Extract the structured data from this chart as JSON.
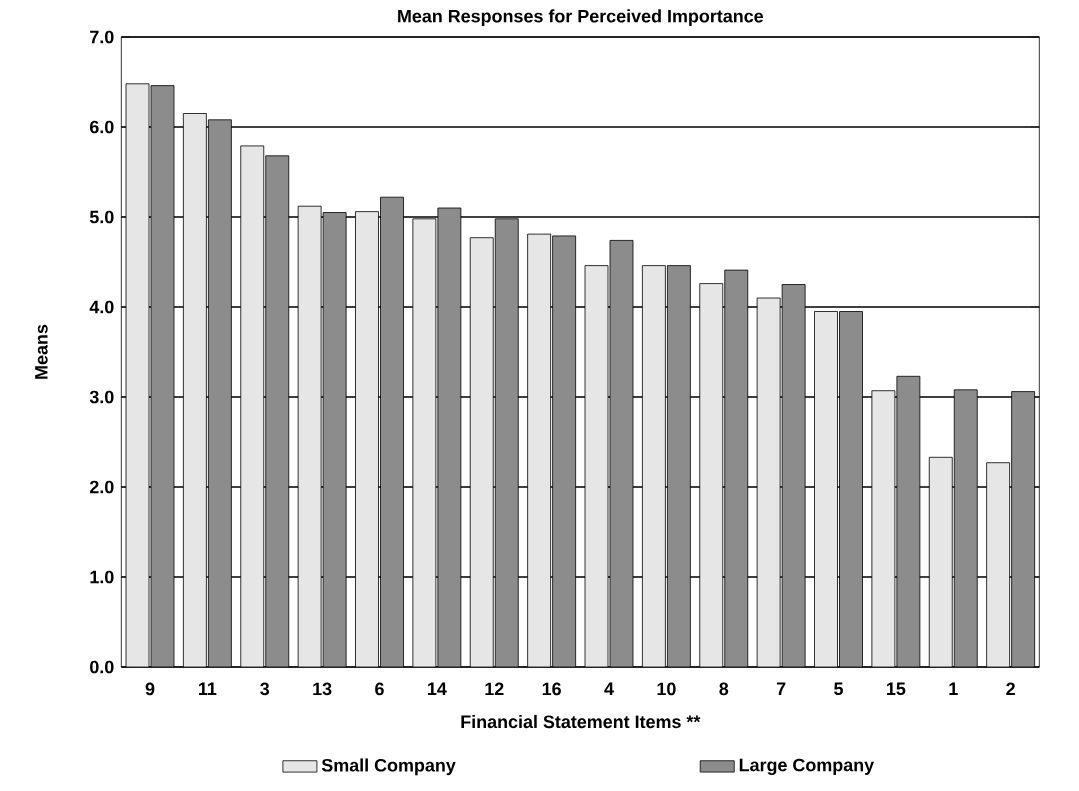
{
  "chart_data": {
    "type": "bar",
    "title": "Mean Responses for Perceived Importance",
    "xlabel": "Financial Statement Items **",
    "ylabel": "Means",
    "categories": [
      "9",
      "11",
      "3",
      "13",
      "6",
      "14",
      "12",
      "16",
      "4",
      "10",
      "8",
      "7",
      "5",
      "15",
      "1",
      "2"
    ],
    "series": [
      {
        "name": "Small Company",
        "color": "#e6e6e6",
        "values": [
          6.48,
          6.15,
          5.79,
          5.12,
          5.06,
          4.98,
          4.77,
          4.81,
          4.46,
          4.46,
          4.26,
          4.1,
          3.95,
          3.07,
          2.33,
          2.27
        ]
      },
      {
        "name": "Large Company",
        "color": "#8c8c8c",
        "values": [
          6.46,
          6.08,
          5.68,
          5.05,
          5.22,
          5.1,
          4.98,
          4.79,
          4.74,
          4.46,
          4.41,
          4.25,
          3.95,
          3.23,
          3.08,
          3.06
        ]
      }
    ],
    "ylim": [
      0,
      7
    ],
    "yticks": [
      {
        "value": 0,
        "label": "0.0"
      },
      {
        "value": 1,
        "label": "1.0"
      },
      {
        "value": 2,
        "label": "2.0"
      },
      {
        "value": 3,
        "label": "3.0"
      },
      {
        "value": 4,
        "label": "4.0"
      },
      {
        "value": 5,
        "label": "5.0"
      },
      {
        "value": 6,
        "label": "6.0"
      },
      {
        "value": 7,
        "label": "7.0"
      }
    ],
    "grid": "y",
    "legend": "bottom"
  }
}
